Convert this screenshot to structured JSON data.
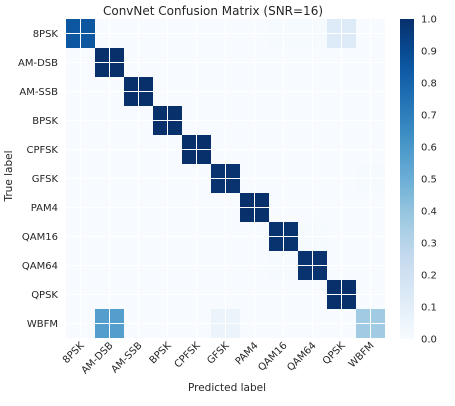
{
  "chart_data": {
    "type": "heatmap",
    "title": "ConvNet Confusion Matrix (SNR=16)",
    "xlabel": "Predicted label",
    "ylabel": "True label",
    "categories": [
      "8PSK",
      "AM-DSB",
      "AM-SSB",
      "BPSK",
      "CPFSK",
      "GFSK",
      "PAM4",
      "QAM16",
      "QAM64",
      "QPSK",
      "WBFM"
    ],
    "matrix": [
      [
        0.85,
        0.0,
        0.0,
        0.0,
        0.0,
        0.0,
        0.0,
        0.01,
        0.01,
        0.13,
        0.0
      ],
      [
        0.0,
        1.0,
        0.0,
        0.0,
        0.0,
        0.0,
        0.0,
        0.0,
        0.0,
        0.0,
        0.0
      ],
      [
        0.0,
        0.0,
        1.0,
        0.0,
        0.0,
        0.0,
        0.0,
        0.0,
        0.0,
        0.0,
        0.0
      ],
      [
        0.0,
        0.0,
        0.0,
        1.0,
        0.0,
        0.0,
        0.0,
        0.0,
        0.0,
        0.0,
        0.0
      ],
      [
        0.0,
        0.0,
        0.0,
        0.0,
        1.0,
        0.0,
        0.0,
        0.0,
        0.0,
        0.0,
        0.0
      ],
      [
        0.0,
        0.0,
        0.0,
        0.0,
        0.0,
        0.99,
        0.0,
        0.0,
        0.0,
        0.0,
        0.01
      ],
      [
        0.0,
        0.0,
        0.0,
        0.0,
        0.0,
        0.0,
        1.0,
        0.0,
        0.0,
        0.0,
        0.0
      ],
      [
        0.0,
        0.0,
        0.0,
        0.0,
        0.0,
        0.0,
        0.0,
        0.99,
        0.01,
        0.0,
        0.0
      ],
      [
        0.0,
        0.0,
        0.0,
        0.0,
        0.0,
        0.0,
        0.0,
        0.01,
        0.99,
        0.0,
        0.0
      ],
      [
        0.0,
        0.0,
        0.0,
        0.0,
        0.0,
        0.0,
        0.0,
        0.0,
        0.0,
        1.0,
        0.0
      ],
      [
        0.0,
        0.57,
        0.0,
        0.0,
        0.0,
        0.06,
        0.0,
        0.0,
        0.0,
        0.0,
        0.37
      ]
    ],
    "colorbar": {
      "range": [
        0.0,
        1.0
      ],
      "ticks": [
        "0.0",
        "0.1",
        "0.2",
        "0.3",
        "0.4",
        "0.5",
        "0.6",
        "0.7",
        "0.8",
        "0.9",
        "1.0"
      ]
    },
    "colormap": "Blues",
    "grid": true
  }
}
